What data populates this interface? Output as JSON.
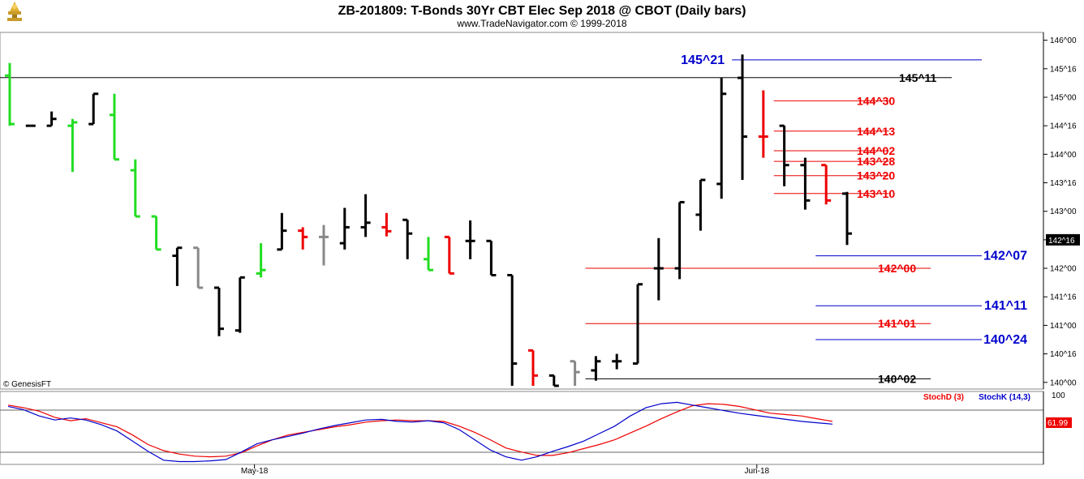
{
  "header": {
    "title": "ZB-201809:  T-Bonds 30Yr CBT Elec Sep 2018 @ CBOT  (Daily bars)",
    "subtitle": "www.TradeNavigator.com © 1999-2018",
    "logo_icon": "bull-bear-trophy-icon",
    "copyright": "© GenesisFT"
  },
  "colors": {
    "up_bar": "#000000",
    "down_bar": "#000000",
    "green_bar": "#22dd22",
    "red_bar": "#ee0000",
    "gray_bar": "#888888",
    "blue_level": "#0000cc",
    "red_level": "#ee0000",
    "black_level": "#000000",
    "stoch_d": "#ee0000",
    "stoch_k": "#0000cc"
  },
  "chart_data": [
    {
      "type": "ohlc",
      "name": "price",
      "yaxis": {
        "ticks": [
          "146^00",
          "145^16",
          "145^00",
          "144^16",
          "144^00",
          "143^16",
          "143^00",
          "142^16",
          "142^00",
          "141^16",
          "141^00",
          "140^16",
          "140^00"
        ],
        "range": [
          139.94,
          146.08
        ],
        "current_label": "142^16"
      },
      "xaxis": {
        "ticks": [
          {
            "label": "May-18",
            "index": 12
          },
          {
            "label": "Jun-18",
            "index": 36
          }
        ]
      },
      "bars": [
        {
          "o": 145.38,
          "h": 145.6,
          "l": 144.5,
          "c": 144.53,
          "color": "green"
        },
        {
          "o": 144.5,
          "h": 144.5,
          "l": 144.5,
          "c": 144.5,
          "color": "black"
        },
        {
          "o": 144.5,
          "h": 144.75,
          "l": 144.5,
          "c": 144.62,
          "color": "black"
        },
        {
          "o": 144.5,
          "h": 144.62,
          "l": 143.69,
          "c": 144.56,
          "color": "green"
        },
        {
          "o": 144.53,
          "h": 145.06,
          "l": 144.53,
          "c": 145.06,
          "color": "black"
        },
        {
          "o": 144.69,
          "h": 145.06,
          "l": 143.91,
          "c": 143.91,
          "color": "green"
        },
        {
          "o": 143.72,
          "h": 143.91,
          "l": 142.91,
          "c": 142.91,
          "color": "green"
        },
        {
          "o": 142.91,
          "h": 142.91,
          "l": 142.33,
          "c": 142.33,
          "color": "green"
        },
        {
          "o": 142.22,
          "h": 142.36,
          "l": 141.69,
          "c": 142.36,
          "color": "black"
        },
        {
          "o": 142.36,
          "h": 142.36,
          "l": 141.66,
          "c": 141.66,
          "color": "gray"
        },
        {
          "o": 141.66,
          "h": 141.66,
          "l": 140.81,
          "c": 140.94,
          "color": "black"
        },
        {
          "o": 140.91,
          "h": 141.84,
          "l": 140.87,
          "c": 141.84,
          "color": "black"
        },
        {
          "o": 141.91,
          "h": 142.44,
          "l": 141.84,
          "c": 141.97,
          "color": "green"
        },
        {
          "o": 142.33,
          "h": 142.97,
          "l": 142.33,
          "c": 142.66,
          "color": "black"
        },
        {
          "o": 142.66,
          "h": 142.72,
          "l": 142.33,
          "c": 142.55,
          "color": "red"
        },
        {
          "o": 142.55,
          "h": 142.76,
          "l": 142.05,
          "c": 142.55,
          "color": "gray"
        },
        {
          "o": 142.44,
          "h": 143.06,
          "l": 142.33,
          "c": 142.72,
          "color": "black"
        },
        {
          "o": 142.72,
          "h": 143.3,
          "l": 142.55,
          "c": 142.8,
          "color": "black"
        },
        {
          "o": 142.72,
          "h": 142.97,
          "l": 142.56,
          "c": 142.65,
          "color": "red"
        },
        {
          "o": 142.85,
          "h": 142.85,
          "l": 142.16,
          "c": 142.61,
          "color": "black"
        },
        {
          "o": 142.16,
          "h": 142.55,
          "l": 141.97,
          "c": 141.97,
          "color": "green"
        },
        {
          "o": 142.55,
          "h": 142.55,
          "l": 141.91,
          "c": 141.91,
          "color": "red"
        },
        {
          "o": 142.48,
          "h": 142.84,
          "l": 142.16,
          "c": 142.48,
          "color": "black"
        },
        {
          "o": 142.48,
          "h": 142.48,
          "l": 141.88,
          "c": 141.88,
          "color": "black"
        },
        {
          "o": 141.88,
          "h": 141.88,
          "l": 139.94,
          "c": 140.33,
          "color": "black"
        },
        {
          "o": 140.56,
          "h": 140.56,
          "l": 139.94,
          "c": 140.12,
          "color": "red"
        },
        {
          "o": 140.12,
          "h": 140.12,
          "l": 139.94,
          "c": 139.94,
          "color": "black"
        },
        {
          "o": 140.37,
          "h": 140.37,
          "l": 139.94,
          "c": 140.18,
          "color": "gray"
        },
        {
          "o": 140.21,
          "h": 140.46,
          "l": 140.03,
          "c": 140.37,
          "color": "black"
        },
        {
          "o": 140.37,
          "h": 140.5,
          "l": 140.23,
          "c": 140.37,
          "color": "black"
        },
        {
          "o": 140.33,
          "h": 141.72,
          "l": 140.33,
          "c": 141.72,
          "color": "black"
        },
        {
          "o": 142.0,
          "h": 142.53,
          "l": 141.44,
          "c": 142.0,
          "color": "black"
        },
        {
          "o": 142.0,
          "h": 143.16,
          "l": 141.81,
          "c": 143.16,
          "color": "black"
        },
        {
          "o": 142.94,
          "h": 143.55,
          "l": 142.66,
          "c": 143.55,
          "color": "black"
        },
        {
          "o": 143.48,
          "h": 145.34,
          "l": 143.22,
          "c": 145.06,
          "color": "black"
        },
        {
          "o": 145.34,
          "h": 145.75,
          "l": 143.55,
          "c": 144.31,
          "color": "black"
        },
        {
          "o": 144.31,
          "h": 145.12,
          "l": 143.94,
          "c": 144.31,
          "color": "red"
        },
        {
          "o": 144.5,
          "h": 144.5,
          "l": 143.44,
          "c": 143.81,
          "color": "black"
        },
        {
          "o": 143.81,
          "h": 143.94,
          "l": 143.03,
          "c": 143.19,
          "color": "black"
        },
        {
          "o": 143.81,
          "h": 143.81,
          "l": 143.12,
          "c": 143.19,
          "color": "red"
        },
        {
          "o": 143.31,
          "h": 143.34,
          "l": 142.41,
          "c": 142.61,
          "color": "black"
        }
      ],
      "levels": [
        {
          "label": "145^21",
          "value": 145.656,
          "color": "blue",
          "from": 35,
          "to": 51
        },
        {
          "label": "145^11",
          "value": 145.344,
          "color": "black",
          "from": 0,
          "to": 45
        },
        {
          "label": "144^30",
          "value": 144.938,
          "color": "red",
          "from": 37,
          "to": 42
        },
        {
          "label": "144^13",
          "value": 144.406,
          "color": "red",
          "from": 37,
          "to": 42
        },
        {
          "label": "144^02",
          "value": 144.062,
          "color": "red",
          "from": 37,
          "to": 42
        },
        {
          "label": "143^28",
          "value": 143.875,
          "color": "red",
          "from": 37,
          "to": 42
        },
        {
          "label": "143^20",
          "value": 143.625,
          "color": "red",
          "from": 37,
          "to": 42
        },
        {
          "label": "143^10",
          "value": 143.312,
          "color": "red",
          "from": 37,
          "to": 42
        },
        {
          "label": "142^07",
          "value": 142.219,
          "color": "blue",
          "from": 39,
          "to": 51
        },
        {
          "label": "142^00",
          "value": 142.0,
          "color": "red",
          "from": 28,
          "to": 44
        },
        {
          "label": "141^11",
          "value": 141.344,
          "color": "blue",
          "from": 39,
          "to": 51
        },
        {
          "label": "141^01",
          "value": 141.031,
          "color": "red",
          "from": 28,
          "to": 44
        },
        {
          "label": "140^24",
          "value": 140.75,
          "color": "blue",
          "from": 39,
          "to": 51
        },
        {
          "label": "140^02",
          "value": 140.062,
          "color": "black",
          "from": 28,
          "to": 44
        }
      ]
    },
    {
      "type": "line",
      "name": "stochastic",
      "yaxis": {
        "ticks": [
          "100"
        ],
        "range": [
          0,
          100
        ],
        "current_label": "61.99"
      },
      "legend": [
        "StochD (3)",
        "StochK (14,3)"
      ],
      "series": [
        {
          "name": "StochD (3)",
          "color": "red",
          "values": [
            86,
            82,
            77,
            68,
            63,
            66,
            60,
            54,
            42,
            28,
            19,
            14,
            11,
            10,
            11,
            16,
            26,
            35,
            42,
            46,
            50,
            54,
            57,
            61,
            63,
            64,
            63,
            63,
            62,
            55,
            46,
            35,
            23,
            17,
            12,
            12,
            16,
            22,
            28,
            35,
            45,
            55,
            66,
            76,
            85,
            88,
            87,
            84,
            79,
            74,
            72,
            70,
            66,
            62
          ]
        },
        {
          "name": "StochK (14,3)",
          "color": "blue",
          "values": [
            84,
            79,
            70,
            64,
            67,
            64,
            57,
            48,
            33,
            18,
            5,
            3,
            3,
            4,
            6,
            17,
            29,
            35,
            40,
            45,
            51,
            56,
            60,
            64,
            65,
            62,
            61,
            63,
            60,
            50,
            35,
            20,
            10,
            5,
            10,
            18,
            25,
            33,
            44,
            55,
            70,
            82,
            88,
            90,
            86,
            82,
            78,
            74,
            71,
            68,
            65,
            62,
            60,
            58
          ]
        }
      ]
    }
  ]
}
